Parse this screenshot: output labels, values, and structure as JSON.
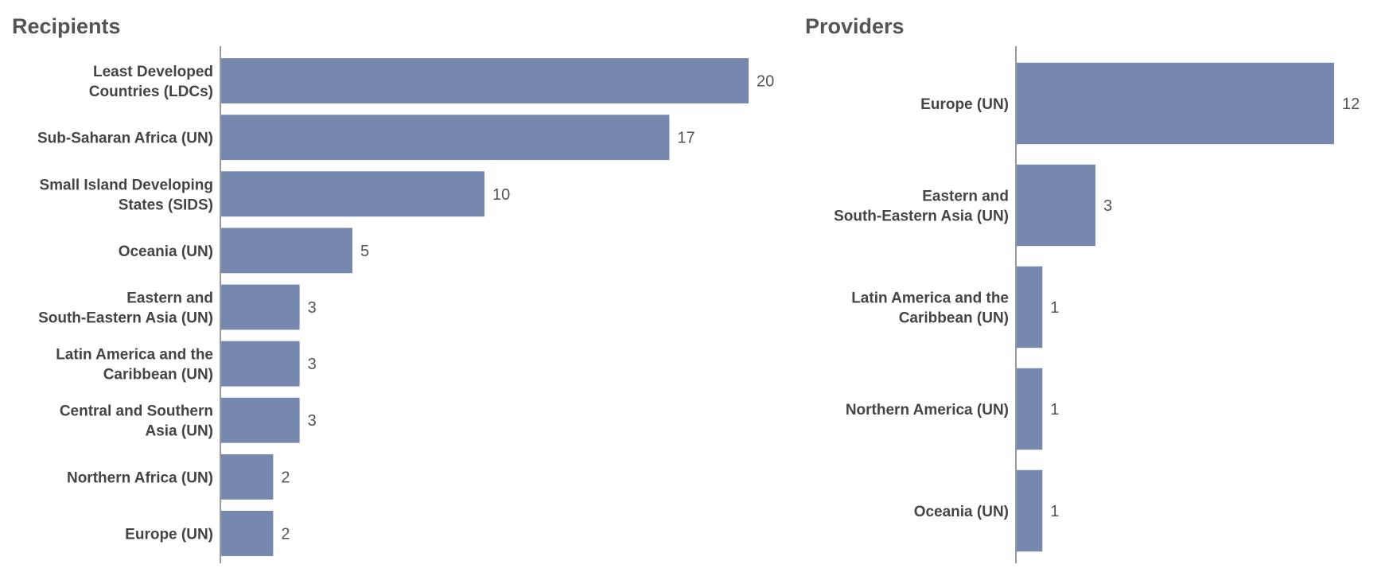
{
  "colors": {
    "bar": "#7688ae",
    "axis": "#999999"
  },
  "chart_data": [
    {
      "type": "bar",
      "orientation": "horizontal",
      "title": "Recipients",
      "categories": [
        "Least Developed Countries (LDCs)",
        "Sub-Saharan Africa (UN)",
        "Small Island Developing States (SIDS)",
        "Oceania (UN)",
        "Eastern and South-Eastern Asia (UN)",
        "Latin America and the Caribbean (UN)",
        "Central and Southern Asia (UN)",
        "Northern Africa (UN)",
        "Europe (UN)"
      ],
      "label_lines": [
        [
          "Least Developed",
          "Countries (LDCs)"
        ],
        [
          "Sub-Saharan Africa (UN)"
        ],
        [
          "Small Island Developing",
          "States (SIDS)"
        ],
        [
          "Oceania (UN)"
        ],
        [
          "Eastern and",
          "South-Eastern Asia (UN)"
        ],
        [
          "Latin America and the",
          "Caribbean (UN)"
        ],
        [
          "Central and Southern",
          "Asia (UN)"
        ],
        [
          "Northern Africa (UN)"
        ],
        [
          "Europe (UN)"
        ]
      ],
      "values": [
        20,
        17,
        10,
        5,
        3,
        3,
        3,
        2,
        2
      ],
      "xlim": [
        0,
        20
      ],
      "grid": false
    },
    {
      "type": "bar",
      "orientation": "horizontal",
      "title": "Providers",
      "categories": [
        "Europe (UN)",
        "Eastern and South-Eastern Asia (UN)",
        "Latin America and the Caribbean (UN)",
        "Northern America (UN)",
        "Oceania (UN)"
      ],
      "label_lines": [
        [
          "Europe (UN)"
        ],
        [
          "Eastern and",
          "South-Eastern Asia (UN)"
        ],
        [
          "Latin America and the",
          "Caribbean (UN)"
        ],
        [
          "Northern America (UN)"
        ],
        [
          "Oceania (UN)"
        ]
      ],
      "values": [
        12,
        3,
        1,
        1,
        1
      ],
      "xlim": [
        0,
        12
      ],
      "grid": false
    }
  ]
}
